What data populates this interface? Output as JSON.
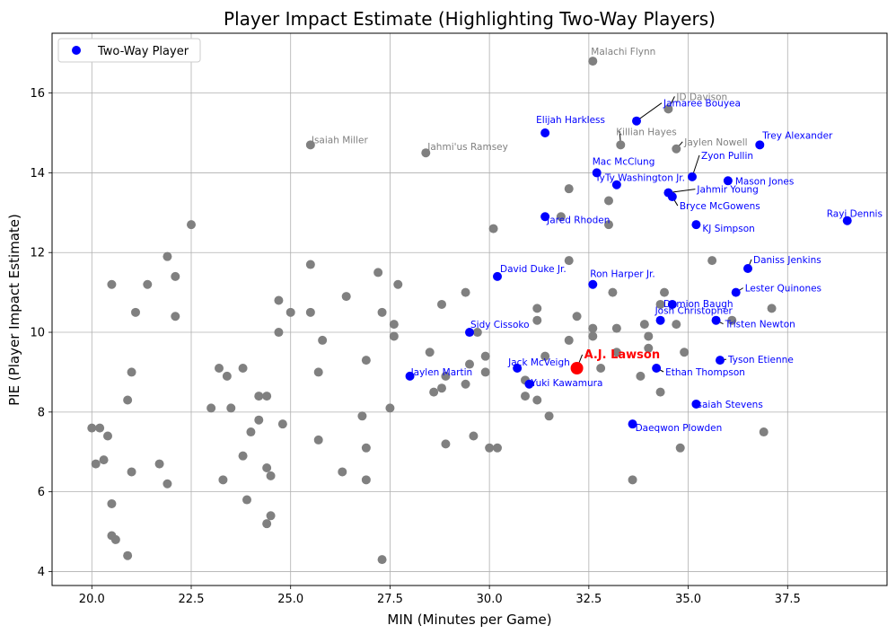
{
  "chart_data": {
    "type": "scatter",
    "title": "Player Impact Estimate (Highlighting Two-Way Players)",
    "xlabel": "MIN (Minutes per Game)",
    "ylabel": "PIE (Player Impact Estimate)",
    "xlim": [
      19.0,
      40.0
    ],
    "ylim": [
      3.65,
      17.5
    ],
    "xticks": [
      20.0,
      22.5,
      25.0,
      27.5,
      30.0,
      32.5,
      35.0,
      37.5
    ],
    "xtick_labels": [
      "20.0",
      "22.5",
      "25.0",
      "27.5",
      "30.0",
      "32.5",
      "35.0",
      "37.5"
    ],
    "yticks": [
      4,
      6,
      8,
      10,
      12,
      14,
      16
    ],
    "ytick_labels": [
      "4",
      "6",
      "8",
      "10",
      "12",
      "14",
      "16"
    ],
    "grid": true,
    "legend": {
      "position": "upper-left",
      "entries": [
        {
          "label": "Two-Way Player",
          "color": "#0000ff"
        }
      ]
    },
    "colors": {
      "two_way": "#0000ff",
      "other": "#808080",
      "highlight": "#ff0000"
    },
    "series": [
      {
        "name": "Two-Way Player",
        "points": [
          {
            "x": 31.4,
            "y": 15.0,
            "label": "Elijah Harkless"
          },
          {
            "x": 33.7,
            "y": 15.3,
            "label": "Jamaree Bouyea"
          },
          {
            "x": 36.8,
            "y": 14.7,
            "label": "Trey Alexander"
          },
          {
            "x": 32.7,
            "y": 14.0,
            "label": "Mac McClung"
          },
          {
            "x": 35.1,
            "y": 13.9,
            "label": "Zyon Pullin"
          },
          {
            "x": 33.2,
            "y": 13.7,
            "label": "TyTy Washington Jr."
          },
          {
            "x": 36.0,
            "y": 13.8,
            "label": "Mason Jones"
          },
          {
            "x": 34.5,
            "y": 13.5,
            "label": "Jahmir Young"
          },
          {
            "x": 34.6,
            "y": 13.4,
            "label": "Bryce McGowens"
          },
          {
            "x": 31.4,
            "y": 12.9,
            "label": "Jared Rhoden"
          },
          {
            "x": 35.2,
            "y": 12.7,
            "label": "KJ Simpson"
          },
          {
            "x": 39.0,
            "y": 12.8,
            "label": "Rayj Dennis"
          },
          {
            "x": 36.5,
            "y": 11.6,
            "label": "Daniss Jenkins"
          },
          {
            "x": 30.2,
            "y": 11.4,
            "label": "David Duke Jr."
          },
          {
            "x": 32.6,
            "y": 11.2,
            "label": "Ron Harper Jr."
          },
          {
            "x": 36.2,
            "y": 11.0,
            "label": "Lester Quinones"
          },
          {
            "x": 34.6,
            "y": 10.7,
            "label": "Damion Baugh"
          },
          {
            "x": 34.3,
            "y": 10.3,
            "label": "Josh Christopher"
          },
          {
            "x": 35.7,
            "y": 10.3,
            "label": "Tristen Newton"
          },
          {
            "x": 29.5,
            "y": 10.0,
            "label": "Sidy Cissoko"
          },
          {
            "x": 35.8,
            "y": 9.3,
            "label": "Tyson Etienne"
          },
          {
            "x": 30.7,
            "y": 9.1,
            "label": "Jack McVeigh"
          },
          {
            "x": 34.2,
            "y": 9.1,
            "label": "Ethan Thompson"
          },
          {
            "x": 28.0,
            "y": 8.9,
            "label": "Jaylen Martin"
          },
          {
            "x": 31.0,
            "y": 8.7,
            "label": "Yuki Kawamura"
          },
          {
            "x": 35.2,
            "y": 8.2,
            "label": "Isaiah Stevens"
          },
          {
            "x": 33.6,
            "y": 7.7,
            "label": "Daeqwon Plowden"
          }
        ]
      },
      {
        "name": "",
        "points": [
          {
            "x": 32.6,
            "y": 16.8,
            "label": "Malachi Flynn"
          },
          {
            "x": 34.5,
            "y": 15.6,
            "label": "JD Davison"
          },
          {
            "x": 33.3,
            "y": 14.7,
            "label": "Killian Hayes"
          },
          {
            "x": 34.7,
            "y": 14.6,
            "label": "Jaylen Nowell"
          },
          {
            "x": 25.5,
            "y": 14.7,
            "label": "Isaiah Miller"
          },
          {
            "x": 28.4,
            "y": 14.5,
            "label": "Jahmi'us Ramsey"
          },
          {
            "x": 32.0,
            "y": 13.6
          },
          {
            "x": 33.0,
            "y": 13.3
          },
          {
            "x": 31.8,
            "y": 12.9
          },
          {
            "x": 33.0,
            "y": 12.7
          },
          {
            "x": 30.1,
            "y": 12.6
          },
          {
            "x": 22.5,
            "y": 12.7
          },
          {
            "x": 21.9,
            "y": 11.9
          },
          {
            "x": 32.0,
            "y": 11.8
          },
          {
            "x": 35.6,
            "y": 11.8
          },
          {
            "x": 25.5,
            "y": 11.7
          },
          {
            "x": 27.2,
            "y": 11.5
          },
          {
            "x": 22.1,
            "y": 11.4
          },
          {
            "x": 20.5,
            "y": 11.2
          },
          {
            "x": 21.4,
            "y": 11.2
          },
          {
            "x": 27.7,
            "y": 11.2
          },
          {
            "x": 29.4,
            "y": 11.0
          },
          {
            "x": 33.1,
            "y": 11.0
          },
          {
            "x": 34.4,
            "y": 11.0
          },
          {
            "x": 26.4,
            "y": 10.9
          },
          {
            "x": 24.7,
            "y": 10.8
          },
          {
            "x": 28.8,
            "y": 10.7
          },
          {
            "x": 34.3,
            "y": 10.7
          },
          {
            "x": 31.2,
            "y": 10.6
          },
          {
            "x": 37.1,
            "y": 10.6
          },
          {
            "x": 21.1,
            "y": 10.5
          },
          {
            "x": 25.0,
            "y": 10.5
          },
          {
            "x": 25.5,
            "y": 10.5
          },
          {
            "x": 27.3,
            "y": 10.5
          },
          {
            "x": 22.1,
            "y": 10.4
          },
          {
            "x": 32.2,
            "y": 10.4
          },
          {
            "x": 31.2,
            "y": 10.3
          },
          {
            "x": 36.1,
            "y": 10.3
          },
          {
            "x": 27.6,
            "y": 10.2
          },
          {
            "x": 33.9,
            "y": 10.2
          },
          {
            "x": 34.7,
            "y": 10.2
          },
          {
            "x": 32.6,
            "y": 10.1
          },
          {
            "x": 33.2,
            "y": 10.1
          },
          {
            "x": 24.7,
            "y": 10.0
          },
          {
            "x": 29.7,
            "y": 10.0
          },
          {
            "x": 27.6,
            "y": 9.9
          },
          {
            "x": 32.6,
            "y": 9.9
          },
          {
            "x": 34.0,
            "y": 9.9
          },
          {
            "x": 25.8,
            "y": 9.8
          },
          {
            "x": 32.0,
            "y": 9.8
          },
          {
            "x": 34.0,
            "y": 9.6
          },
          {
            "x": 28.5,
            "y": 9.5
          },
          {
            "x": 33.2,
            "y": 9.5
          },
          {
            "x": 34.9,
            "y": 9.5
          },
          {
            "x": 29.9,
            "y": 9.4
          },
          {
            "x": 31.4,
            "y": 9.4
          },
          {
            "x": 26.9,
            "y": 9.3
          },
          {
            "x": 29.5,
            "y": 9.2
          },
          {
            "x": 23.2,
            "y": 9.1
          },
          {
            "x": 23.8,
            "y": 9.1
          },
          {
            "x": 32.8,
            "y": 9.1
          },
          {
            "x": 21.0,
            "y": 9.0
          },
          {
            "x": 25.7,
            "y": 9.0
          },
          {
            "x": 29.9,
            "y": 9.0
          },
          {
            "x": 23.4,
            "y": 8.9
          },
          {
            "x": 28.9,
            "y": 8.9
          },
          {
            "x": 33.8,
            "y": 8.9
          },
          {
            "x": 30.9,
            "y": 8.8
          },
          {
            "x": 29.4,
            "y": 8.7
          },
          {
            "x": 28.8,
            "y": 8.6
          },
          {
            "x": 28.6,
            "y": 8.5
          },
          {
            "x": 34.3,
            "y": 8.5
          },
          {
            "x": 24.2,
            "y": 8.4
          },
          {
            "x": 24.4,
            "y": 8.4
          },
          {
            "x": 30.9,
            "y": 8.4
          },
          {
            "x": 20.9,
            "y": 8.3
          },
          {
            "x": 31.2,
            "y": 8.3
          },
          {
            "x": 23.0,
            "y": 8.1
          },
          {
            "x": 23.5,
            "y": 8.1
          },
          {
            "x": 27.5,
            "y": 8.1
          },
          {
            "x": 26.8,
            "y": 7.9
          },
          {
            "x": 31.5,
            "y": 7.9
          },
          {
            "x": 24.2,
            "y": 7.8
          },
          {
            "x": 24.8,
            "y": 7.7
          },
          {
            "x": 20.0,
            "y": 7.6
          },
          {
            "x": 20.2,
            "y": 7.6
          },
          {
            "x": 24.0,
            "y": 7.5
          },
          {
            "x": 36.9,
            "y": 7.5
          },
          {
            "x": 20.4,
            "y": 7.4
          },
          {
            "x": 29.6,
            "y": 7.4
          },
          {
            "x": 25.7,
            "y": 7.3
          },
          {
            "x": 28.9,
            "y": 7.2
          },
          {
            "x": 26.9,
            "y": 7.1
          },
          {
            "x": 30.0,
            "y": 7.1
          },
          {
            "x": 30.2,
            "y": 7.1
          },
          {
            "x": 34.8,
            "y": 7.1
          },
          {
            "x": 23.8,
            "y": 6.9
          },
          {
            "x": 20.3,
            "y": 6.8
          },
          {
            "x": 20.1,
            "y": 6.7
          },
          {
            "x": 21.7,
            "y": 6.7
          },
          {
            "x": 24.4,
            "y": 6.6
          },
          {
            "x": 21.0,
            "y": 6.5
          },
          {
            "x": 26.3,
            "y": 6.5
          },
          {
            "x": 24.5,
            "y": 6.4
          },
          {
            "x": 23.3,
            "y": 6.3
          },
          {
            "x": 26.9,
            "y": 6.3
          },
          {
            "x": 33.6,
            "y": 6.3
          },
          {
            "x": 21.9,
            "y": 6.2
          },
          {
            "x": 23.9,
            "y": 5.8
          },
          {
            "x": 20.5,
            "y": 5.7
          },
          {
            "x": 24.5,
            "y": 5.4
          },
          {
            "x": 24.4,
            "y": 5.2
          },
          {
            "x": 20.5,
            "y": 4.9
          },
          {
            "x": 20.6,
            "y": 4.8
          },
          {
            "x": 20.9,
            "y": 4.4
          },
          {
            "x": 27.3,
            "y": 4.3
          }
        ]
      },
      {
        "name": "",
        "points": [
          {
            "x": 32.2,
            "y": 9.1,
            "label": "A.J. Lawson"
          }
        ]
      }
    ]
  }
}
